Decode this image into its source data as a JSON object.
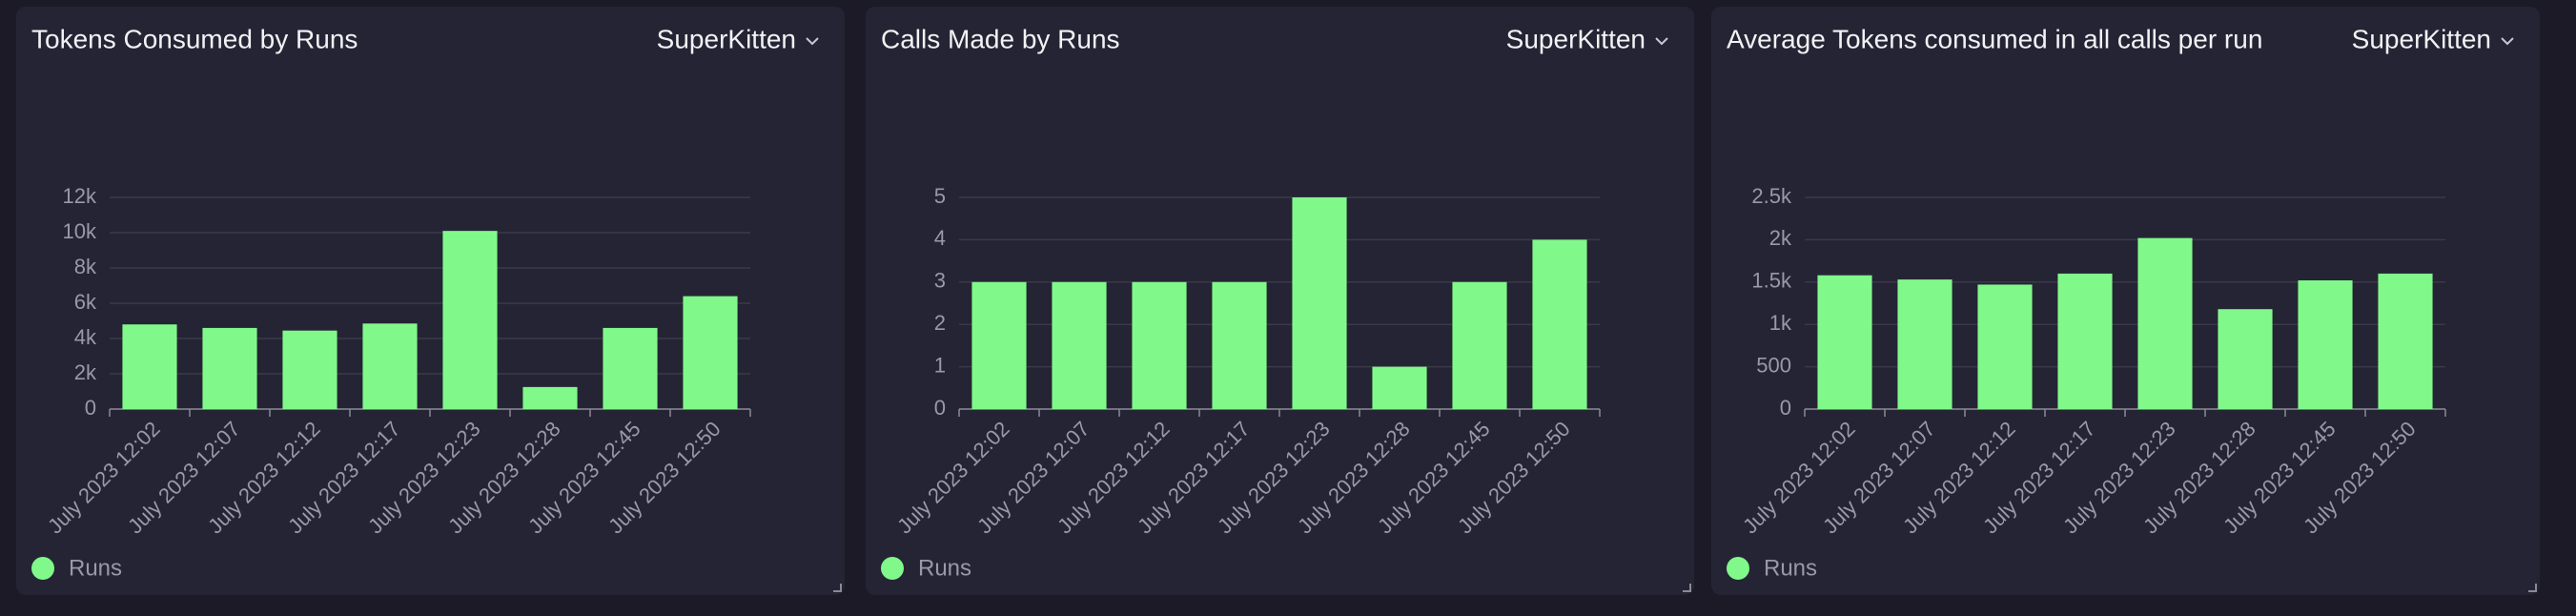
{
  "chart_data": [
    {
      "type": "bar",
      "title": "Tokens Consumed by Runs",
      "selector": "SuperKitten",
      "categories": [
        "July 2023 12:02",
        "July 2023 12:07",
        "July 2023 12:12",
        "July 2023 12:17",
        "July 2023 12:23",
        "July 2023 12:28",
        "July 2023 12:45",
        "July 2023 12:50"
      ],
      "series": [
        {
          "name": "Runs",
          "color": "#80f98a",
          "values": [
            4800,
            4600,
            4450,
            4850,
            10100,
            1250,
            4600,
            6400
          ]
        }
      ],
      "ylim": [
        0,
        12000
      ],
      "yticks": [
        0,
        {
          "value": 2000,
          "label": "2k"
        },
        {
          "value": 4000,
          "label": "4k"
        },
        {
          "value": 6000,
          "label": "6k"
        },
        {
          "value": 8000,
          "label": "8k"
        },
        {
          "value": 10000,
          "label": "10k"
        },
        {
          "value": 12000,
          "label": "12k"
        }
      ],
      "grid": true
    },
    {
      "type": "bar",
      "title": "Calls Made by Runs",
      "selector": "SuperKitten",
      "categories": [
        "July 2023 12:02",
        "July 2023 12:07",
        "July 2023 12:12",
        "July 2023 12:17",
        "July 2023 12:23",
        "July 2023 12:28",
        "July 2023 12:45",
        "July 2023 12:50"
      ],
      "series": [
        {
          "name": "Runs",
          "color": "#80f98a",
          "values": [
            3,
            3,
            3,
            3,
            5,
            1,
            3,
            4
          ]
        }
      ],
      "ylim": [
        0,
        5
      ],
      "yticks": [
        0,
        1,
        2,
        3,
        4,
        5
      ],
      "grid": true
    },
    {
      "type": "bar",
      "title": "Average Tokens consumed in all calls per run",
      "selector": "SuperKitten",
      "categories": [
        "July 2023 12:02",
        "July 2023 12:07",
        "July 2023 12:12",
        "July 2023 12:17",
        "July 2023 12:23",
        "July 2023 12:28",
        "July 2023 12:45",
        "July 2023 12:50"
      ],
      "series": [
        {
          "name": "Runs",
          "color": "#80f98a",
          "values": [
            1580,
            1530,
            1470,
            1600,
            2020,
            1180,
            1520,
            1600
          ]
        }
      ],
      "ylim": [
        0,
        2500
      ],
      "yticks": [
        0,
        500,
        {
          "value": 1000,
          "label": "1k"
        },
        {
          "value": 1500,
          "label": "1.5k"
        },
        {
          "value": 2000,
          "label": "2k"
        },
        {
          "value": 2500,
          "label": "2.5k"
        }
      ],
      "grid": true
    }
  ]
}
